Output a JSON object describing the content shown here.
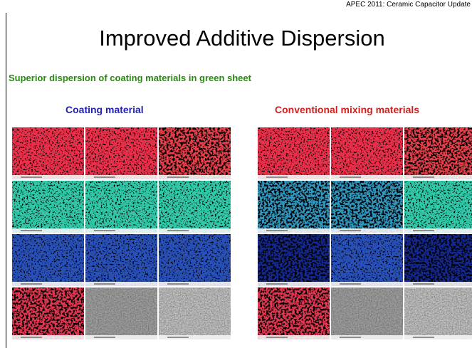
{
  "header": {
    "tag": "APEC 2011: Ceramic Capacitor Update",
    "title": "Improved Additive Dispersion"
  },
  "subtitle": "Superior dispersion of coating materials in green sheet",
  "panels": [
    {
      "label": "Coating material"
    },
    {
      "label": "Conventional mixing materials"
    }
  ]
}
